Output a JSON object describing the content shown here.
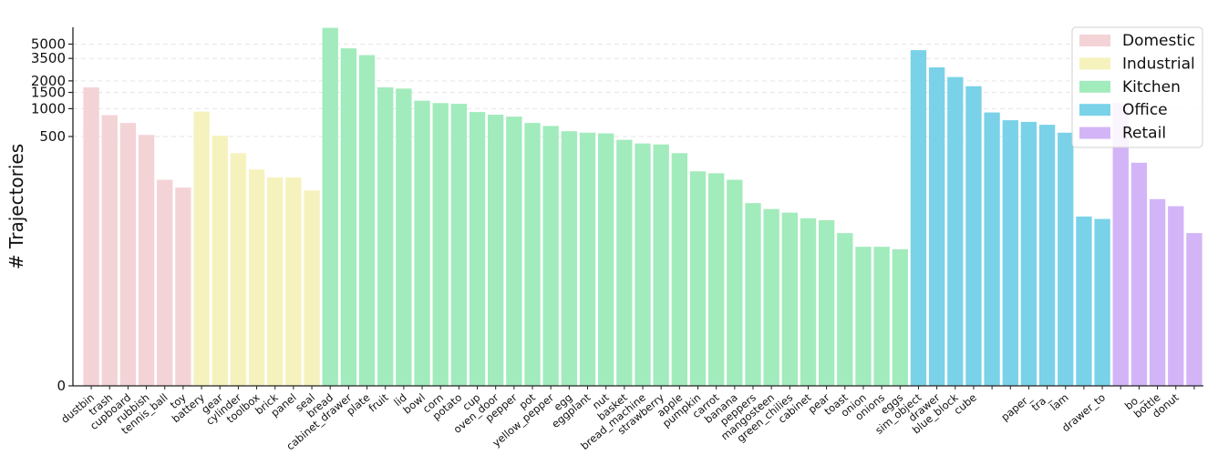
{
  "chart_data": {
    "type": "bar",
    "ylabel": "# Trajectories",
    "yscale": "symlog",
    "ylim": [
      0,
      7600
    ],
    "yticks": [
      0,
      500,
      1000,
      1500,
      2000,
      3500,
      5000
    ],
    "ytick_labels": [
      "0",
      "500",
      "1000",
      "1500",
      "2000",
      "3500",
      "5000"
    ],
    "grid": "horizontal dashed",
    "legend_position": "top-right",
    "groups": [
      {
        "name": "Domestic",
        "color": "#f4d3d6"
      },
      {
        "name": "Industrial",
        "color": "#f6f2bd"
      },
      {
        "name": "Kitchen",
        "color": "#a2ebbc"
      },
      {
        "name": "Office",
        "color": "#7ad2e8"
      },
      {
        "name": "Retail",
        "color": "#d3b5f7"
      }
    ],
    "categories": [
      "dustbin",
      "trash",
      "cupboard",
      "rubbish",
      "tennis_ball",
      "toy",
      "battery",
      "gear",
      "cylinder",
      "toolbox",
      "brick",
      "panel",
      "seal",
      "bread",
      "cabinet_drawer",
      "plate",
      "fruit",
      "lid",
      "bowl",
      "corn",
      "potato",
      "cup",
      "oven_door",
      "pepper",
      "pot",
      "yellow_pepper",
      "egg",
      "eggplant",
      "nut",
      "basket",
      "bread_machine",
      "strawberry",
      "apple",
      "pumpkin",
      "carrot",
      "banana",
      "peppers",
      "mangosteen",
      "green_chilies",
      "cabinet",
      "pear",
      "toast",
      "onion",
      "onions",
      "eggs",
      "sim_object",
      "drawer",
      "blue_block",
      "cube",
      "",
      "",
      "paper_",
      "tra_",
      "lam",
      "",
      "drawer_to",
      "",
      "bo_",
      "bottle",
      "donut",
      ""
    ],
    "values": [
      1700,
      850,
      700,
      520,
      170,
      140,
      930,
      510,
      330,
      220,
      180,
      180,
      130,
      7500,
      4500,
      3800,
      1700,
      1650,
      1220,
      1150,
      1130,
      920,
      860,
      820,
      700,
      650,
      570,
      550,
      540,
      460,
      420,
      410,
      330,
      210,
      200,
      170,
      95,
      82,
      75,
      65,
      62,
      45,
      32,
      32,
      30,
      4300,
      2800,
      2200,
      1750,
      910,
      750,
      720,
      670,
      550,
      68,
      64,
      1150,
      260,
      105,
      88,
      45
    ],
    "group_index": [
      0,
      0,
      0,
      0,
      0,
      0,
      1,
      1,
      1,
      1,
      1,
      1,
      1,
      2,
      2,
      2,
      2,
      2,
      2,
      2,
      2,
      2,
      2,
      2,
      2,
      2,
      2,
      2,
      2,
      2,
      2,
      2,
      2,
      2,
      2,
      2,
      2,
      2,
      2,
      2,
      2,
      2,
      2,
      2,
      2,
      3,
      3,
      3,
      3,
      3,
      3,
      3,
      3,
      3,
      3,
      3,
      4,
      4,
      4,
      4,
      4
    ]
  }
}
